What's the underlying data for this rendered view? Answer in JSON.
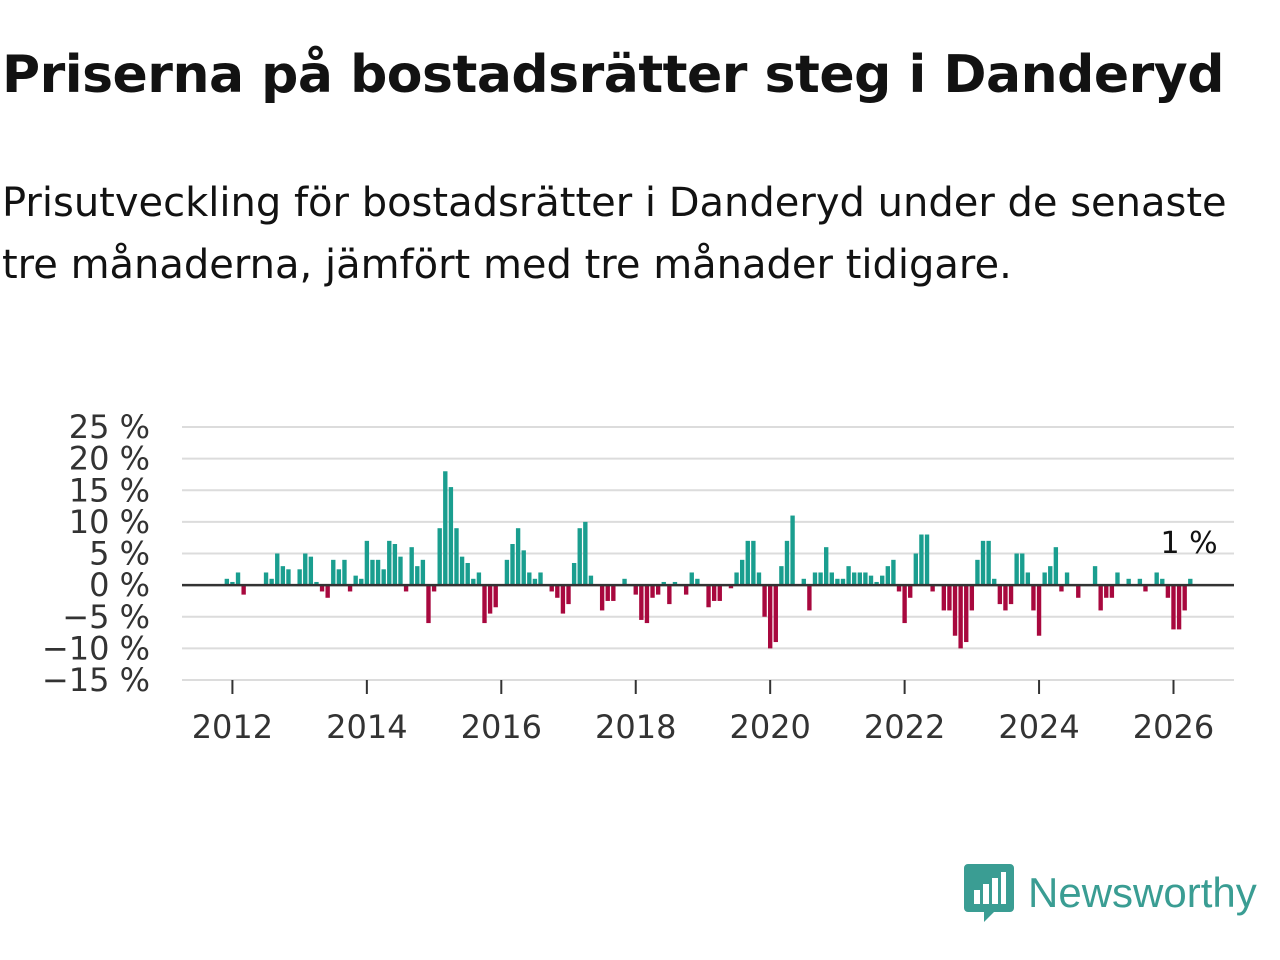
{
  "title": "Priserna på bostadsrätter steg i Danderyd",
  "subtitle": "Prisutveckling för bostadsrätter i Danderyd under de senaste tre månaderna, jämfört med tre månader tidigare.",
  "brand": {
    "name": "Newsworthy",
    "logo": "newsworthy-logo-icon",
    "color": "#3a9d93"
  },
  "chart_data": {
    "type": "bar",
    "title": "Priserna på bostadsrätter steg i Danderyd",
    "xlabel": "",
    "ylabel": "",
    "ylim": [
      -15,
      25
    ],
    "xlim": [
      2011.25,
      2026.9
    ],
    "grid": true,
    "legend": "none",
    "positive_color": "#1a9e8f",
    "negative_color": "#a8083e",
    "y_ticks": [
      {
        "value": 25,
        "label": "25 %"
      },
      {
        "value": 20,
        "label": "20 %"
      },
      {
        "value": 15,
        "label": "15 %"
      },
      {
        "value": 10,
        "label": "10 %"
      },
      {
        "value": 5,
        "label": "5 %"
      },
      {
        "value": 0,
        "label": "0 %"
      },
      {
        "value": -5,
        "label": "−5 %"
      },
      {
        "value": -10,
        "label": "−10 %"
      },
      {
        "value": -15,
        "label": "−15 %"
      }
    ],
    "x_ticks": [
      {
        "value": 2012,
        "label": "2012"
      },
      {
        "value": 2014,
        "label": "2014"
      },
      {
        "value": 2016,
        "label": "2016"
      },
      {
        "value": 2018,
        "label": "2018"
      },
      {
        "value": 2020,
        "label": "2020"
      },
      {
        "value": 2022,
        "label": "2022"
      },
      {
        "value": 2024,
        "label": "2024"
      },
      {
        "value": 2026,
        "label": "2026"
      }
    ],
    "annotation": {
      "x": 2026.083,
      "y": 1,
      "text": "1 %"
    },
    "series": [
      {
        "name": "Prisutveckling",
        "start": 2011.917,
        "step": 0.08333,
        "values": [
          1,
          0.5,
          2,
          -1.5,
          0,
          0,
          0,
          2,
          1,
          5,
          3,
          2.5,
          0,
          2.5,
          5,
          4.5,
          0.5,
          -1,
          -2,
          4,
          2.5,
          4,
          -1,
          1.5,
          1,
          7,
          4,
          4,
          2.5,
          7,
          6.5,
          4.5,
          -1,
          6,
          3,
          4,
          -6,
          -1,
          9,
          18,
          15.5,
          9,
          4.5,
          3.5,
          1,
          2,
          -6,
          -4.5,
          -3.5,
          0,
          4,
          6.5,
          9,
          5.5,
          2,
          1,
          2,
          0,
          -1,
          -2,
          -4.5,
          -3,
          3.5,
          9,
          10,
          1.5,
          0,
          -4,
          -2.5,
          -2.5,
          0,
          1,
          0,
          -1.5,
          -5.5,
          -6,
          -2,
          -1.5,
          0.5,
          -3,
          0.5,
          0,
          -1.5,
          2,
          1,
          0,
          -3.5,
          -2.5,
          -2.5,
          0,
          -0.5,
          2,
          4,
          7,
          7,
          2,
          -5,
          -10,
          -9,
          3,
          7,
          11,
          0,
          1,
          -4,
          2,
          2,
          6,
          2,
          1,
          1,
          3,
          2,
          2,
          2,
          1.5,
          0.5,
          1.5,
          3,
          4,
          -1,
          -6,
          -2,
          5,
          8,
          8,
          -1,
          0,
          -4,
          -4,
          -8,
          -10,
          -9,
          -4,
          4,
          7,
          7,
          1,
          -3,
          -4,
          -3,
          5,
          5,
          2,
          -4,
          -8,
          2,
          3,
          6,
          -1,
          2,
          0,
          -2,
          0,
          0,
          3,
          -4,
          -2,
          -2,
          2,
          0,
          1,
          0,
          1,
          -1,
          0,
          2,
          1,
          -2,
          -7,
          -7,
          -4,
          1
        ]
      }
    ]
  }
}
